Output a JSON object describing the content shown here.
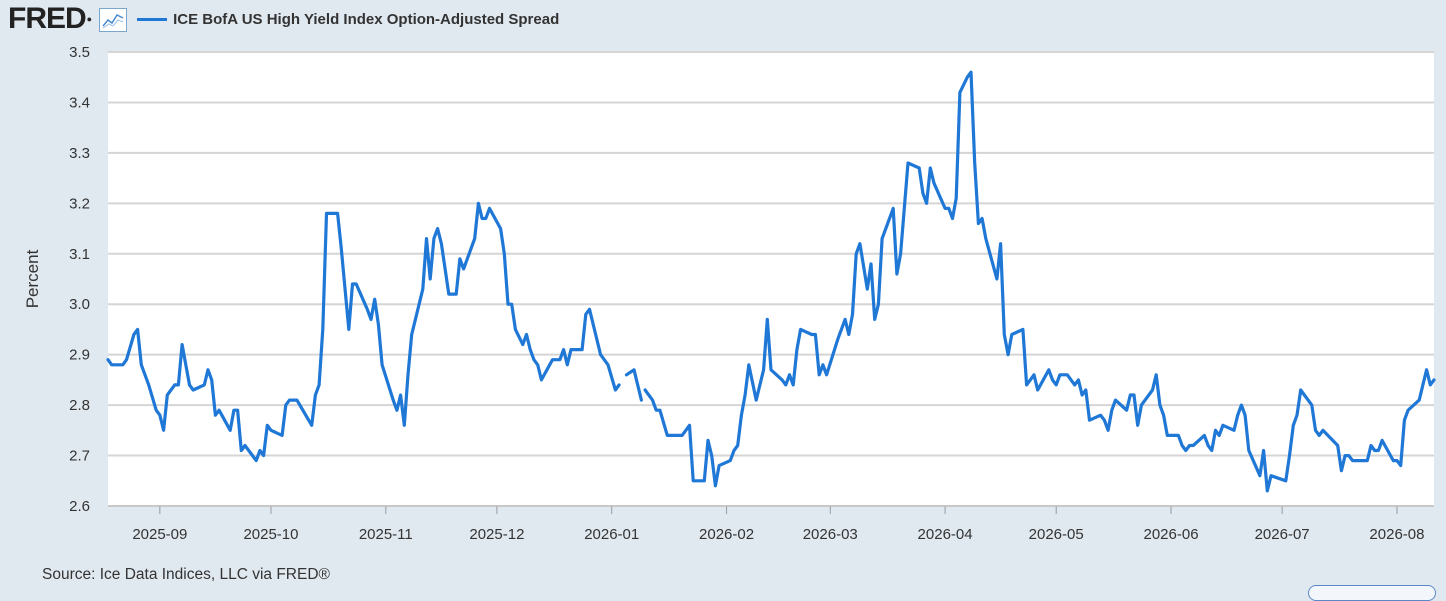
{
  "header": {
    "logo_text": "FRED",
    "legend_label": "ICE BofA US High Yield Index Option-Adjusted Spread",
    "series_color": "#1f77d6"
  },
  "source_text": "Source: Ice Data Indices, LLC via FRED®",
  "chart_data": {
    "type": "line",
    "ylabel": "Percent",
    "ylim": [
      2.6,
      3.5
    ],
    "yticks": [
      "2.6",
      "2.7",
      "2.8",
      "2.9",
      "3.0",
      "3.1",
      "3.2",
      "3.3",
      "3.4",
      "3.5"
    ],
    "xlim": [
      "2025-08-18",
      "2026-08-11"
    ],
    "xticks": [
      {
        "label": "2025-09",
        "date": "2025-09-01"
      },
      {
        "label": "2025-10",
        "date": "2025-10-01"
      },
      {
        "label": "2025-11",
        "date": "2025-11-01"
      },
      {
        "label": "2025-12",
        "date": "2025-12-01"
      },
      {
        "label": "2026-01",
        "date": "2026-01-01"
      },
      {
        "label": "2026-02",
        "date": "2026-02-01"
      },
      {
        "label": "2026-03",
        "date": "2026-03-01"
      },
      {
        "label": "2026-04",
        "date": "2026-04-01"
      },
      {
        "label": "2026-05",
        "date": "2026-05-01"
      },
      {
        "label": "2026-06",
        "date": "2026-06-01"
      },
      {
        "label": "2026-07",
        "date": "2026-07-01"
      },
      {
        "label": "2026-08",
        "date": "2026-08-01"
      }
    ],
    "grid": true,
    "series": [
      {
        "color": "#1f77d6",
        "points": [
          [
            "2025-08-18",
            2.89
          ],
          [
            "2025-08-19",
            2.88
          ],
          [
            "2025-08-22",
            2.88
          ],
          [
            "2025-08-23",
            2.89
          ],
          [
            "2025-08-25",
            2.94
          ],
          [
            "2025-08-26",
            2.95
          ],
          [
            "2025-08-27",
            2.88
          ],
          [
            "2025-08-29",
            2.84
          ],
          [
            "2025-08-31",
            2.79
          ],
          [
            "2025-09-01",
            2.78
          ],
          [
            "2025-09-02",
            2.75
          ],
          [
            "2025-09-03",
            2.82
          ],
          [
            "2025-09-05",
            2.84
          ],
          [
            "2025-09-06",
            2.84
          ],
          [
            "2025-09-07",
            2.92
          ],
          [
            "2025-09-08",
            2.88
          ],
          [
            "2025-09-09",
            2.84
          ],
          [
            "2025-09-10",
            2.83
          ],
          [
            "2025-09-13",
            2.84
          ],
          [
            "2025-09-14",
            2.87
          ],
          [
            "2025-09-15",
            2.85
          ],
          [
            "2025-09-16",
            2.78
          ],
          [
            "2025-09-17",
            2.79
          ],
          [
            "2025-09-20",
            2.75
          ],
          [
            "2025-09-21",
            2.79
          ],
          [
            "2025-09-22",
            2.79
          ],
          [
            "2025-09-23",
            2.71
          ],
          [
            "2025-09-24",
            2.72
          ],
          [
            "2025-09-27",
            2.69
          ],
          [
            "2025-09-28",
            2.71
          ],
          [
            "2025-09-29",
            2.7
          ],
          [
            "2025-09-30",
            2.76
          ],
          [
            "2025-10-01",
            2.75
          ],
          [
            "2025-10-04",
            2.74
          ],
          [
            "2025-10-05",
            2.8
          ],
          [
            "2025-10-06",
            2.81
          ],
          [
            "2025-10-08",
            2.81
          ],
          [
            "2025-10-12",
            2.76
          ],
          [
            "2025-10-13",
            2.82
          ],
          [
            "2025-10-14",
            2.84
          ],
          [
            "2025-10-15",
            2.95
          ],
          [
            "2025-10-16",
            3.18
          ],
          [
            "2025-10-19",
            3.18
          ],
          [
            "2025-10-20",
            3.11
          ],
          [
            "2025-10-22",
            2.95
          ],
          [
            "2025-10-23",
            3.04
          ],
          [
            "2025-10-24",
            3.04
          ],
          [
            "2025-10-27",
            2.99
          ],
          [
            "2025-10-28",
            2.97
          ],
          [
            "2025-10-29",
            3.01
          ],
          [
            "2025-10-30",
            2.96
          ],
          [
            "2025-10-31",
            2.88
          ],
          [
            "2025-11-03",
            2.81
          ],
          [
            "2025-11-04",
            2.79
          ],
          [
            "2025-11-05",
            2.82
          ],
          [
            "2025-11-06",
            2.76
          ],
          [
            "2025-11-07",
            2.86
          ],
          [
            "2025-11-08",
            2.94
          ],
          [
            "2025-11-11",
            3.03
          ],
          [
            "2025-11-12",
            3.13
          ],
          [
            "2025-11-13",
            3.05
          ],
          [
            "2025-11-14",
            3.13
          ],
          [
            "2025-11-15",
            3.15
          ],
          [
            "2025-11-16",
            3.12
          ],
          [
            "2025-11-18",
            3.02
          ],
          [
            "2025-11-20",
            3.02
          ],
          [
            "2025-11-21",
            3.09
          ],
          [
            "2025-11-22",
            3.07
          ],
          [
            "2025-11-25",
            3.13
          ],
          [
            "2025-11-26",
            3.2
          ],
          [
            "2025-11-27",
            3.17
          ],
          [
            "2025-11-28",
            3.17
          ],
          [
            "2025-11-29",
            3.19
          ],
          [
            "2025-12-02",
            3.15
          ],
          [
            "2025-12-03",
            3.1
          ],
          [
            "2025-12-04",
            3.0
          ],
          [
            "2025-12-05",
            3.0
          ],
          [
            "2025-12-06",
            2.95
          ],
          [
            "2025-12-08",
            2.92
          ],
          [
            "2025-12-09",
            2.94
          ],
          [
            "2025-12-10",
            2.91
          ],
          [
            "2025-12-11",
            2.89
          ],
          [
            "2025-12-12",
            2.88
          ],
          [
            "2025-12-13",
            2.85
          ],
          [
            "2025-12-16",
            2.89
          ],
          [
            "2025-12-18",
            2.89
          ],
          [
            "2025-12-19",
            2.91
          ],
          [
            "2025-12-20",
            2.88
          ],
          [
            "2025-12-21",
            2.91
          ],
          [
            "2025-12-24",
            2.91
          ],
          [
            "2025-12-25",
            2.98
          ],
          [
            "2025-12-26",
            2.99
          ],
          [
            "2025-12-29",
            2.9
          ],
          [
            "2025-12-31",
            2.88
          ],
          [
            "2026-01-02",
            2.83
          ],
          [
            "2026-01-03",
            2.84
          ],
          null,
          [
            "2026-01-05",
            2.86
          ],
          [
            "2026-01-07",
            2.87
          ],
          [
            "2026-01-09",
            2.81
          ],
          null,
          [
            "2026-01-10",
            2.83
          ],
          [
            "2026-01-12",
            2.81
          ],
          [
            "2026-01-13",
            2.79
          ],
          [
            "2026-01-14",
            2.79
          ],
          [
            "2026-01-16",
            2.74
          ],
          [
            "2026-01-19",
            2.74
          ],
          [
            "2026-01-20",
            2.74
          ],
          [
            "2026-01-22",
            2.76
          ],
          [
            "2026-01-23",
            2.65
          ],
          [
            "2026-01-26",
            2.65
          ],
          [
            "2026-01-27",
            2.73
          ],
          [
            "2026-01-28",
            2.7
          ],
          [
            "2026-01-29",
            2.64
          ],
          [
            "2026-01-30",
            2.68
          ],
          [
            "2026-02-02",
            2.69
          ],
          [
            "2026-02-03",
            2.71
          ],
          [
            "2026-02-04",
            2.72
          ],
          [
            "2026-02-05",
            2.78
          ],
          [
            "2026-02-06",
            2.82
          ],
          [
            "2026-02-07",
            2.88
          ],
          [
            "2026-02-09",
            2.81
          ],
          [
            "2026-02-10",
            2.84
          ],
          [
            "2026-02-11",
            2.87
          ],
          [
            "2026-02-12",
            2.97
          ],
          [
            "2026-02-13",
            2.87
          ],
          [
            "2026-02-16",
            2.85
          ],
          [
            "2026-02-17",
            2.84
          ],
          [
            "2026-02-18",
            2.86
          ],
          [
            "2026-02-19",
            2.84
          ],
          [
            "2026-02-20",
            2.91
          ],
          [
            "2026-02-21",
            2.95
          ],
          [
            "2026-02-24",
            2.94
          ],
          [
            "2026-02-25",
            2.94
          ],
          [
            "2026-02-26",
            2.86
          ],
          [
            "2026-02-27",
            2.88
          ],
          [
            "2026-02-28",
            2.86
          ],
          [
            "2026-03-03",
            2.93
          ],
          [
            "2026-03-04",
            2.95
          ],
          [
            "2026-03-05",
            2.97
          ],
          [
            "2026-03-06",
            2.94
          ],
          [
            "2026-03-07",
            2.98
          ],
          [
            "2026-03-08",
            3.1
          ],
          [
            "2026-03-09",
            3.12
          ],
          [
            "2026-03-11",
            3.03
          ],
          [
            "2026-03-12",
            3.08
          ],
          [
            "2026-03-13",
            2.97
          ],
          [
            "2026-03-14",
            3.0
          ],
          [
            "2026-03-15",
            3.13
          ],
          [
            "2026-03-16",
            3.15
          ],
          [
            "2026-03-18",
            3.19
          ],
          [
            "2026-03-19",
            3.06
          ],
          [
            "2026-03-20",
            3.1
          ],
          [
            "2026-03-22",
            3.28
          ],
          [
            "2026-03-25",
            3.27
          ],
          [
            "2026-03-26",
            3.22
          ],
          [
            "2026-03-27",
            3.2
          ],
          [
            "2026-03-28",
            3.27
          ],
          [
            "2026-03-29",
            3.24
          ],
          [
            "2026-04-01",
            3.19
          ],
          [
            "2026-04-02",
            3.19
          ],
          [
            "2026-04-03",
            3.17
          ],
          [
            "2026-04-04",
            3.21
          ],
          [
            "2026-04-05",
            3.42
          ],
          [
            "2026-04-07",
            3.45
          ],
          [
            "2026-04-08",
            3.46
          ],
          [
            "2026-04-09",
            3.28
          ],
          [
            "2026-04-10",
            3.16
          ],
          [
            "2026-04-11",
            3.17
          ],
          [
            "2026-04-12",
            3.13
          ],
          [
            "2026-04-15",
            3.05
          ],
          [
            "2026-04-16",
            3.12
          ],
          [
            "2026-04-17",
            2.94
          ],
          [
            "2026-04-18",
            2.9
          ],
          [
            "2026-04-19",
            2.94
          ],
          [
            "2026-04-22",
            2.95
          ],
          [
            "2026-04-23",
            2.84
          ],
          [
            "2026-04-24",
            2.85
          ],
          [
            "2026-04-25",
            2.86
          ],
          [
            "2026-04-26",
            2.83
          ],
          [
            "2026-04-29",
            2.87
          ],
          [
            "2026-04-30",
            2.85
          ],
          [
            "2026-05-01",
            2.84
          ],
          [
            "2026-05-02",
            2.86
          ],
          [
            "2026-05-04",
            2.86
          ],
          [
            "2026-05-06",
            2.84
          ],
          [
            "2026-05-07",
            2.85
          ],
          [
            "2026-05-08",
            2.82
          ],
          [
            "2026-05-09",
            2.83
          ],
          [
            "2026-05-10",
            2.77
          ],
          [
            "2026-05-13",
            2.78
          ],
          [
            "2026-05-14",
            2.77
          ],
          [
            "2026-05-15",
            2.75
          ],
          [
            "2026-05-16",
            2.79
          ],
          [
            "2026-05-17",
            2.81
          ],
          [
            "2026-05-20",
            2.79
          ],
          [
            "2026-05-21",
            2.82
          ],
          [
            "2026-05-22",
            2.82
          ],
          [
            "2026-05-23",
            2.76
          ],
          [
            "2026-05-24",
            2.8
          ],
          [
            "2026-05-27",
            2.83
          ],
          [
            "2026-05-28",
            2.86
          ],
          [
            "2026-05-29",
            2.8
          ],
          [
            "2026-05-30",
            2.78
          ],
          [
            "2026-05-31",
            2.74
          ],
          [
            "2026-06-03",
            2.74
          ],
          [
            "2026-06-04",
            2.72
          ],
          [
            "2026-06-05",
            2.71
          ],
          [
            "2026-06-06",
            2.72
          ],
          [
            "2026-06-07",
            2.72
          ],
          [
            "2026-06-10",
            2.74
          ],
          [
            "2026-06-11",
            2.72
          ],
          [
            "2026-06-12",
            2.71
          ],
          [
            "2026-06-13",
            2.75
          ],
          [
            "2026-06-14",
            2.74
          ],
          [
            "2026-06-15",
            2.76
          ],
          [
            "2026-06-18",
            2.75
          ],
          [
            "2026-06-19",
            2.78
          ],
          [
            "2026-06-20",
            2.8
          ],
          [
            "2026-06-21",
            2.78
          ],
          [
            "2026-06-22",
            2.71
          ],
          [
            "2026-06-25",
            2.66
          ],
          [
            "2026-06-26",
            2.71
          ],
          [
            "2026-06-27",
            2.63
          ],
          [
            "2026-06-28",
            2.66
          ],
          [
            "2026-07-02",
            2.65
          ],
          [
            "2026-07-03",
            2.7
          ],
          [
            "2026-07-04",
            2.76
          ],
          [
            "2026-07-05",
            2.78
          ],
          [
            "2026-07-06",
            2.83
          ],
          [
            "2026-07-09",
            2.8
          ],
          [
            "2026-07-10",
            2.75
          ],
          [
            "2026-07-11",
            2.74
          ],
          [
            "2026-07-12",
            2.75
          ],
          [
            "2026-07-16",
            2.72
          ],
          [
            "2026-07-17",
            2.67
          ],
          [
            "2026-07-18",
            2.7
          ],
          [
            "2026-07-19",
            2.7
          ],
          [
            "2026-07-20",
            2.69
          ],
          [
            "2026-07-24",
            2.69
          ],
          [
            "2026-07-25",
            2.72
          ],
          [
            "2026-07-26",
            2.71
          ],
          [
            "2026-07-27",
            2.71
          ],
          [
            "2026-07-28",
            2.73
          ],
          [
            "2026-07-31",
            2.69
          ],
          [
            "2026-08-01",
            2.69
          ],
          [
            "2026-08-02",
            2.68
          ],
          [
            "2026-08-03",
            2.77
          ],
          [
            "2026-08-04",
            2.79
          ],
          [
            "2026-08-07",
            2.81
          ],
          [
            "2026-08-08",
            2.84
          ],
          [
            "2026-08-09",
            2.87
          ],
          [
            "2026-08-10",
            2.84
          ],
          [
            "2026-08-11",
            2.85
          ]
        ]
      }
    ]
  }
}
